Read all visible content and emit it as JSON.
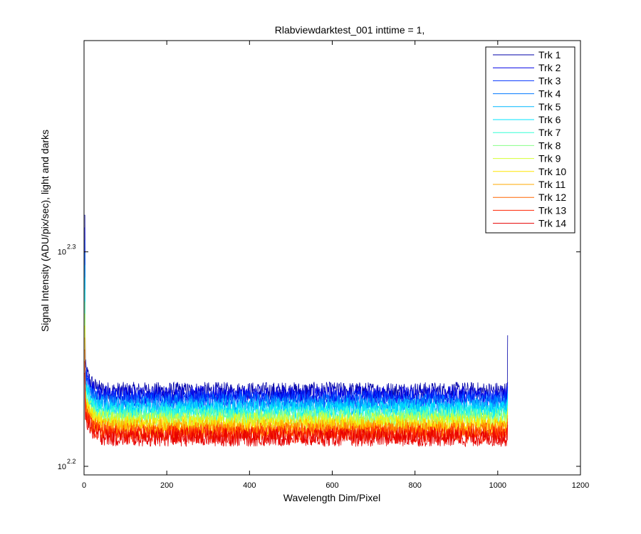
{
  "chart_data": {
    "type": "line",
    "title": "Rlabviewdarktest_001 inttime = 1,",
    "xlabel": "Wavelength Dim/Pixel",
    "ylabel": "Signal Intensity (ADU/pix/sec), light and darks",
    "xlim": [
      0,
      1200
    ],
    "ylim_log10": [
      2.196,
      2.3985
    ],
    "yscale": "log",
    "x_ticks": [
      0,
      200,
      400,
      600,
      800,
      1000,
      1200
    ],
    "y_ticks": [
      {
        "base": "10",
        "exponent": "2.2",
        "log10_value": 2.2
      },
      {
        "base": "10",
        "exponent": "2.3",
        "log10_value": 2.3
      }
    ],
    "grid": false,
    "legend_position": "top-right",
    "pixels": 1024,
    "series": [
      {
        "name": "Trk 1",
        "color": "#0000a8",
        "plateau_log10": 2.2351
      },
      {
        "name": "Trk 2",
        "color": "#0000e6",
        "plateau_log10": 2.2332
      },
      {
        "name": "Trk 3",
        "color": "#0033ff",
        "plateau_log10": 2.2313
      },
      {
        "name": "Trk 4",
        "color": "#0077ff",
        "plateau_log10": 2.2295
      },
      {
        "name": "Trk 5",
        "color": "#00b8ff",
        "plateau_log10": 2.2277
      },
      {
        "name": "Trk 6",
        "color": "#00e6ff",
        "plateau_log10": 2.226
      },
      {
        "name": "Trk 7",
        "color": "#33ffd6",
        "plateau_log10": 2.2243
      },
      {
        "name": "Trk 8",
        "color": "#88ff88",
        "plateau_log10": 2.2226
      },
      {
        "name": "Trk 9",
        "color": "#d6ff33",
        "plateau_log10": 2.221
      },
      {
        "name": "Trk 10",
        "color": "#ffe600",
        "plateau_log10": 2.2194
      },
      {
        "name": "Trk 11",
        "color": "#ffaa00",
        "plateau_log10": 2.2178
      },
      {
        "name": "Trk 12",
        "color": "#ff6600",
        "plateau_log10": 2.2163
      },
      {
        "name": "Trk 13",
        "color": "#ff2200",
        "plateau_log10": 2.2148
      },
      {
        "name": "Trk 14",
        "color": "#e60000",
        "plateau_log10": 2.2134
      }
    ]
  }
}
